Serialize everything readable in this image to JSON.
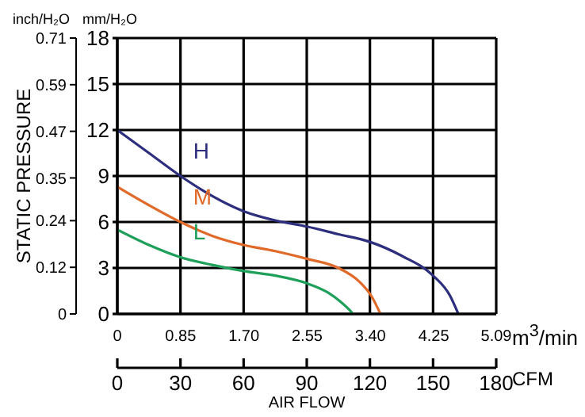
{
  "chart_data": {
    "type": "line",
    "xlabel": "AIR FLOW",
    "y2label": "STATIC PRESSURE",
    "annotations": [
      "inch/H₂O",
      "mm/H₂O",
      "m$^{3}$/min",
      "CFM"
    ],
    "xlim": [
      0,
      180
    ],
    "xticks": [
      0,
      30,
      60,
      90,
      120,
      150,
      180
    ],
    "x2lim": [
      0,
      5.09
    ],
    "x2ticks": [
      0,
      0.85,
      {
        "value": 1.7,
        "label": "1.70"
      },
      2.55,
      {
        "value": 3.4,
        "label": "3.40"
      },
      4.25,
      5.09
    ],
    "ylim": [
      0,
      18
    ],
    "yticks": [
      0,
      3,
      6,
      9,
      12,
      15,
      18
    ],
    "y2lim": [
      0,
      0.71
    ],
    "y2ticks": [
      0,
      0.12,
      0.24,
      0.35,
      0.47,
      0.59,
      0.71
    ],
    "grid": true,
    "legend": false,
    "marker": "none",
    "line_style": "solid",
    "series": [
      {
        "name": "H",
        "color": "#2e2e7e",
        "x": [
          0,
          15,
          30,
          45,
          60,
          75,
          90,
          105,
          120,
          135,
          150,
          158,
          162
        ],
        "values": [
          12,
          10.5,
          9,
          7.7,
          6.7,
          6.1,
          5.7,
          5.2,
          4.7,
          3.8,
          2.5,
          1.2,
          0
        ]
      },
      {
        "name": "M",
        "color": "#e06a2a",
        "x": [
          0,
          15,
          30,
          45,
          60,
          75,
          90,
          105,
          115,
          121,
          125
        ],
        "values": [
          8.3,
          7.1,
          6,
          5.1,
          4.5,
          4.1,
          3.6,
          3,
          2.1,
          1.1,
          0
        ]
      },
      {
        "name": "L",
        "color": "#1fa05a",
        "x": [
          0,
          15,
          30,
          45,
          60,
          75,
          90,
          100,
          106,
          110,
          112
        ],
        "values": [
          5.5,
          4.5,
          3.7,
          3.2,
          2.8,
          2.5,
          2,
          1.4,
          0.8,
          0.3,
          0
        ]
      }
    ]
  }
}
